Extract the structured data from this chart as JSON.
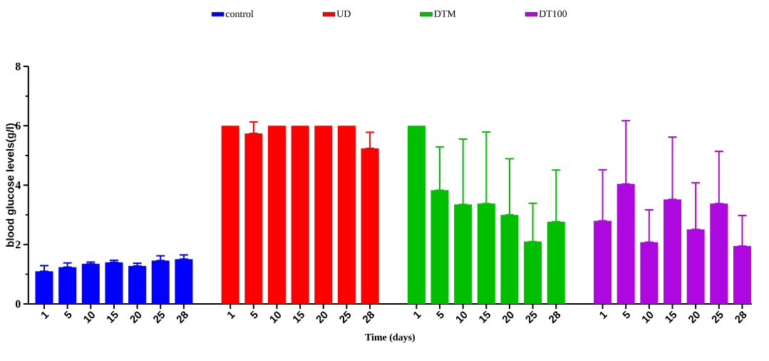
{
  "chart_data": {
    "type": "bar",
    "xlabel": "Time (days)",
    "ylabel": "blood glucose levels(g/l)",
    "categories": [
      "1",
      "5",
      "10",
      "15",
      "20",
      "25",
      "28",
      null,
      "1",
      "5",
      "10",
      "15",
      "20",
      "25",
      "28",
      null,
      "1",
      "5",
      "10",
      "15",
      "20",
      "25",
      "28",
      null,
      "1",
      "5",
      "10",
      "15",
      "20",
      "25",
      "28"
    ],
    "ylim": [
      0,
      8
    ],
    "yticks": [
      0,
      2,
      4,
      6,
      8
    ],
    "legend": "top",
    "series": [
      {
        "name": "control",
        "color": "#0000ff",
        "values": [
          1.1,
          1.24,
          1.35,
          1.4,
          1.28,
          1.46,
          1.51,
          null,
          null,
          null,
          null,
          null,
          null,
          null,
          null,
          null,
          null,
          null,
          null,
          null,
          null,
          null,
          null,
          null,
          null,
          null,
          null,
          null,
          null,
          null,
          null
        ],
        "errors": [
          [
            1.1,
            1.29
          ],
          [
            1.24,
            1.38
          ],
          [
            1.35,
            1.41
          ],
          [
            1.4,
            1.47
          ],
          [
            1.28,
            1.37
          ],
          [
            1.46,
            1.62
          ],
          [
            1.51,
            1.65
          ],
          null,
          null,
          null,
          null,
          null,
          null,
          null,
          null,
          null,
          null,
          null,
          null,
          null,
          null,
          null,
          null,
          null,
          null,
          null,
          null,
          null,
          null,
          null,
          null
        ]
      },
      {
        "name": "UD",
        "color": "#ff0000",
        "values": [
          null,
          null,
          null,
          null,
          null,
          null,
          null,
          null,
          6.0,
          5.74,
          6.0,
          6.0,
          6.0,
          6.0,
          5.24,
          null,
          null,
          null,
          null,
          null,
          null,
          null,
          null,
          null,
          null,
          null,
          null,
          null,
          null,
          null,
          null
        ],
        "errors": [
          null,
          null,
          null,
          null,
          null,
          null,
          null,
          null,
          null,
          [
            5.74,
            6.13
          ],
          null,
          null,
          null,
          null,
          [
            5.24,
            5.78
          ],
          null,
          null,
          null,
          null,
          null,
          null,
          null,
          null,
          null,
          null,
          null,
          null,
          null,
          null,
          null,
          null
        ]
      },
      {
        "name": "DTM",
        "color": "#00bf00",
        "values": [
          null,
          null,
          null,
          null,
          null,
          null,
          null,
          null,
          null,
          null,
          null,
          null,
          null,
          null,
          null,
          null,
          6.0,
          3.83,
          3.35,
          3.38,
          3.0,
          2.1,
          2.77,
          null,
          null,
          null,
          null,
          null,
          null,
          null,
          null
        ],
        "errors": [
          null,
          null,
          null,
          null,
          null,
          null,
          null,
          null,
          null,
          null,
          null,
          null,
          null,
          null,
          null,
          null,
          null,
          [
            3.83,
            5.29
          ],
          [
            3.35,
            5.55
          ],
          [
            3.38,
            5.79
          ],
          [
            3.0,
            4.89
          ],
          [
            2.1,
            3.39
          ],
          [
            2.77,
            4.51
          ],
          null,
          null,
          null,
          null,
          null,
          null,
          null,
          null
        ]
      },
      {
        "name": "DT100",
        "color": "#ae08e0",
        "values": [
          null,
          null,
          null,
          null,
          null,
          null,
          null,
          null,
          null,
          null,
          null,
          null,
          null,
          null,
          null,
          null,
          null,
          null,
          null,
          null,
          null,
          null,
          null,
          null,
          2.8,
          4.04,
          2.08,
          3.52,
          2.51,
          3.38,
          1.95
        ],
        "errors": [
          null,
          null,
          null,
          null,
          null,
          null,
          null,
          null,
          null,
          null,
          null,
          null,
          null,
          null,
          null,
          null,
          null,
          null,
          null,
          null,
          null,
          null,
          null,
          null,
          [
            2.8,
            4.52
          ],
          [
            4.04,
            6.17
          ],
          [
            2.08,
            3.17
          ],
          [
            3.52,
            5.62
          ],
          [
            2.51,
            4.08
          ],
          [
            3.38,
            5.14
          ],
          [
            1.95,
            2.98
          ]
        ]
      }
    ]
  }
}
